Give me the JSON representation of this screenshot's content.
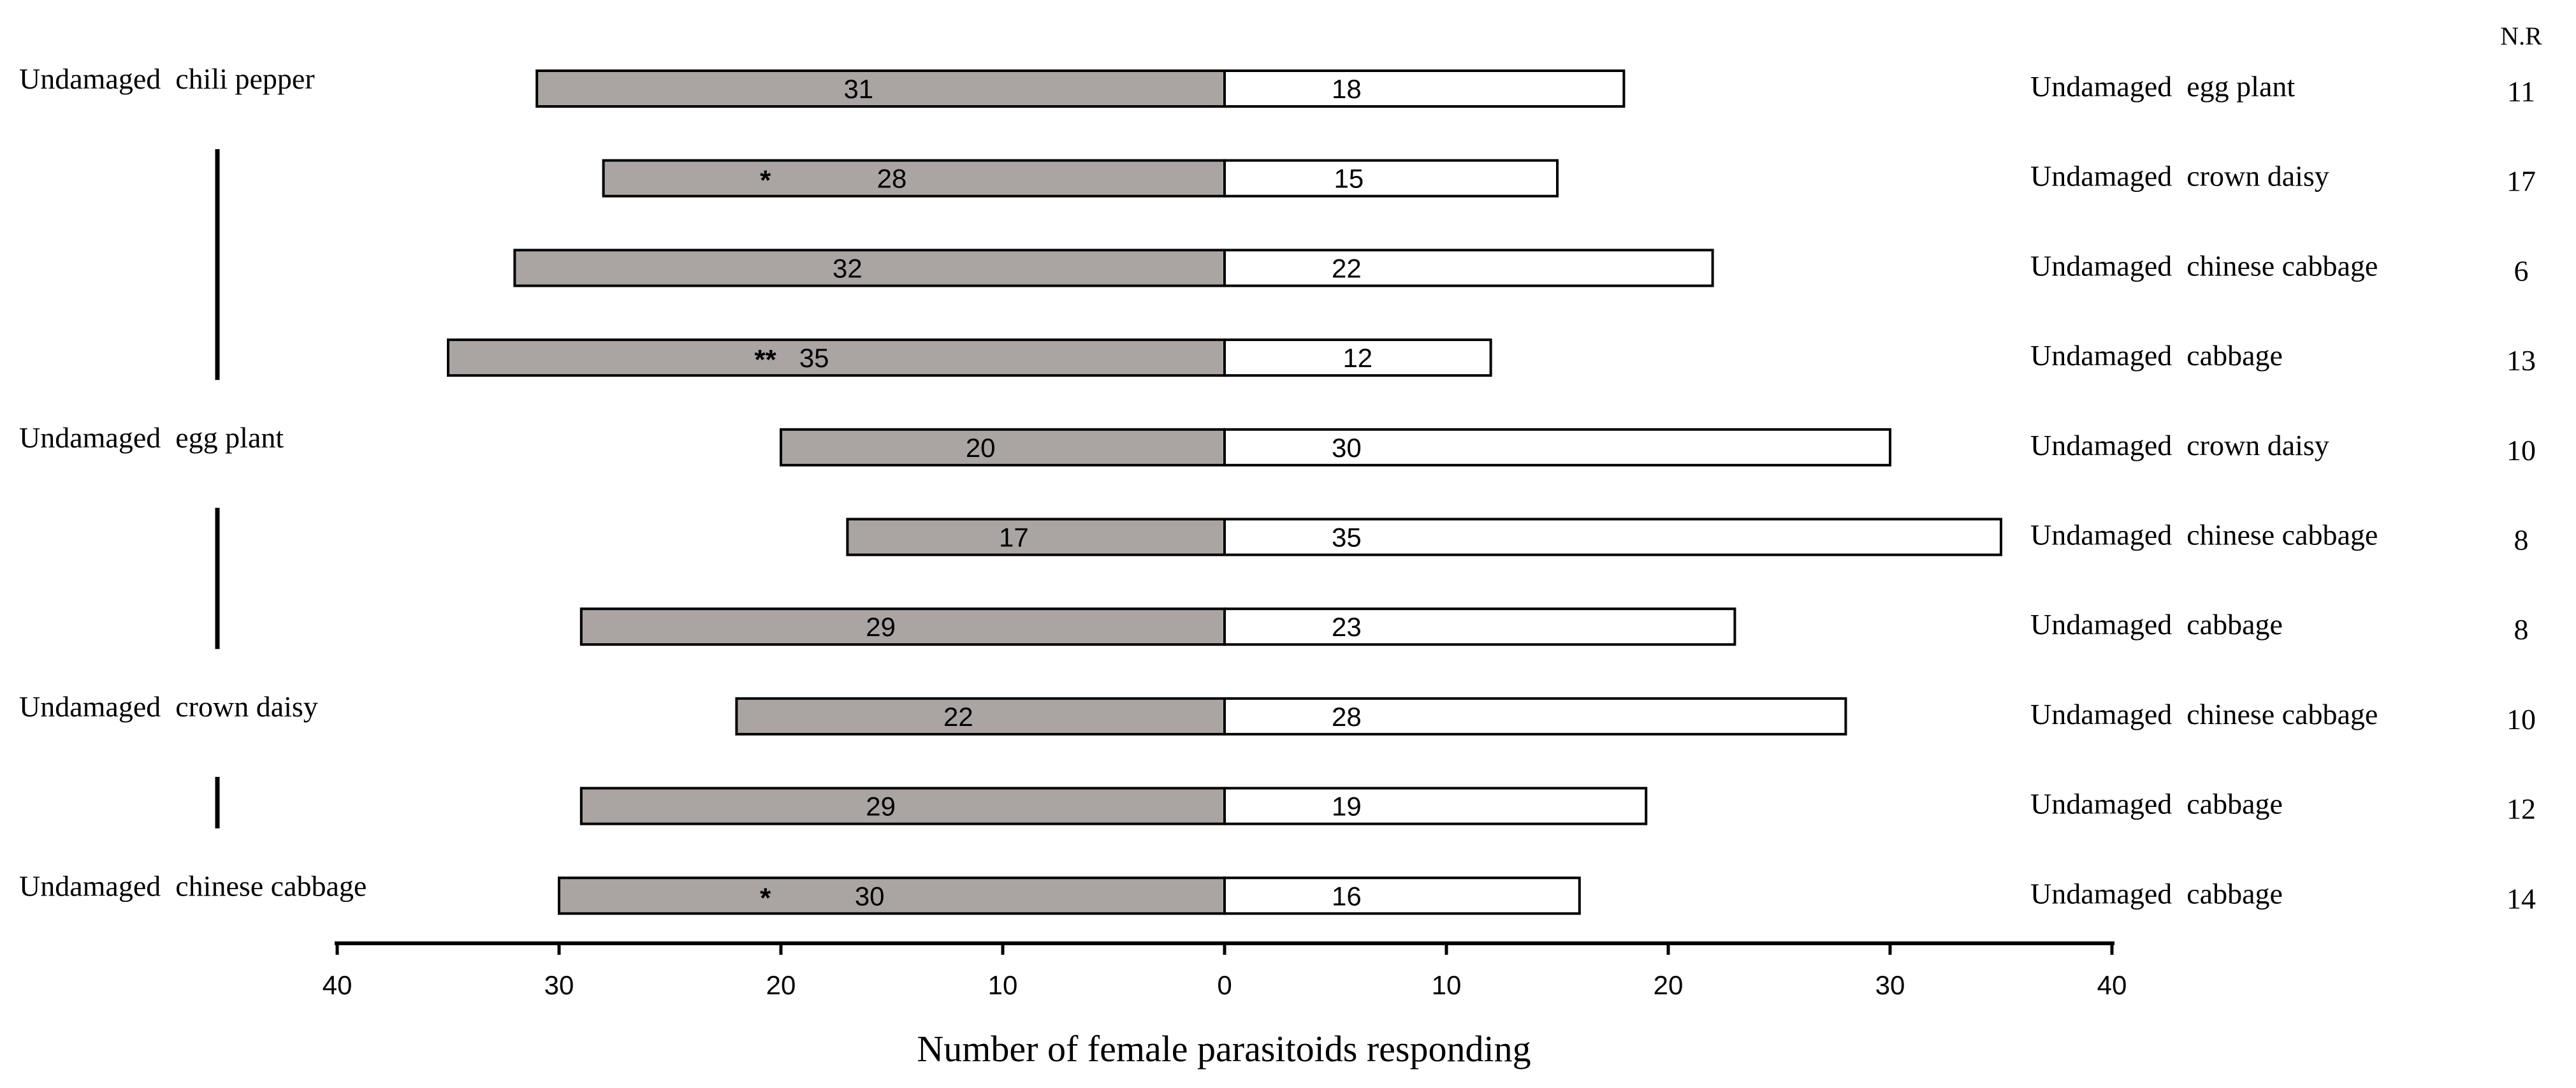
{
  "chart_data": {
    "type": "bar",
    "orientation": "horizontal-diverging",
    "xlabel": "Number of female parasitoids responding",
    "xlim": [
      -40,
      40
    ],
    "x_ticks": [
      -40,
      -30,
      -20,
      -10,
      0,
      10,
      20,
      30,
      40
    ],
    "x_tick_labels": [
      "40",
      "30",
      "20",
      "10",
      "0",
      "10",
      "20",
      "30",
      "40"
    ],
    "nr_header": "N.R",
    "series_colors": {
      "left": "#aaa5a3",
      "right": "#ffffff"
    },
    "left_groups": [
      {
        "label": "Undamaged  chili pepper",
        "first_row": 0,
        "last_row": 3
      },
      {
        "label": "Undamaged  egg plant",
        "first_row": 4,
        "last_row": 6
      },
      {
        "label": "Undamaged  crown daisy",
        "first_row": 7,
        "last_row": 8
      },
      {
        "label": "Undamaged  chinese cabbage",
        "first_row": 9,
        "last_row": 9
      }
    ],
    "rows": [
      {
        "left_value": 31,
        "left_label": "31",
        "right_value": 18,
        "right_label": "18",
        "sig": "",
        "right_name": "Undamaged  egg plant",
        "nr": "11"
      },
      {
        "left_value": 28,
        "left_label": "28",
        "right_value": 15,
        "right_label": "15",
        "sig": "*",
        "right_name": "Undamaged  crown daisy",
        "nr": "17"
      },
      {
        "left_value": 32,
        "left_label": "32",
        "right_value": 22,
        "right_label": "22",
        "sig": "",
        "right_name": "Undamaged  chinese cabbage",
        "nr": "6"
      },
      {
        "left_value": 35,
        "left_label": "35",
        "right_value": 12,
        "right_label": "12",
        "sig": "**",
        "right_name": "Undamaged  cabbage",
        "nr": "13"
      },
      {
        "left_value": 20,
        "left_label": "20",
        "right_value": 30,
        "right_label": "30",
        "sig": "",
        "right_name": "Undamaged  crown daisy",
        "nr": "10"
      },
      {
        "left_value": 17,
        "left_label": "17",
        "right_value": 35,
        "right_label": "35",
        "sig": "",
        "right_name": "Undamaged  chinese cabbage",
        "nr": "8"
      },
      {
        "left_value": 29,
        "left_label": "29",
        "right_value": 23,
        "right_label": "23",
        "sig": "",
        "right_name": "Undamaged  cabbage",
        "nr": "8"
      },
      {
        "left_value": 22,
        "left_label": "22",
        "right_value": 28,
        "right_label": "28",
        "sig": "",
        "right_name": "Undamaged  chinese cabbage",
        "nr": "10"
      },
      {
        "left_value": 29,
        "left_label": "29",
        "right_value": 19,
        "right_label": "19",
        "sig": "",
        "right_name": "Undamaged  cabbage",
        "nr": "12"
      },
      {
        "left_value": 30,
        "left_label": "30",
        "right_value": 16,
        "right_label": "16",
        "sig": "*",
        "right_name": "Undamaged  cabbage",
        "nr": "14"
      }
    ]
  }
}
